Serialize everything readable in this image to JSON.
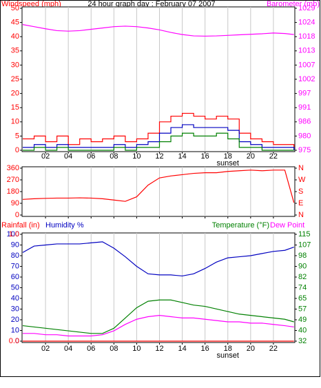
{
  "chart_data": [
    {
      "type": "line",
      "title": "24 hour graph day : February 07 2007",
      "y_label": "Windspeed (mph)",
      "x": [
        0,
        1,
        2,
        3,
        4,
        5,
        6,
        7,
        8,
        9,
        10,
        11,
        12,
        13,
        14,
        15,
        16,
        17,
        18,
        19,
        20,
        21,
        22,
        23,
        23.8
      ],
      "xlim": [
        0,
        24
      ],
      "xticks": [
        {
          "value": 2,
          "label": "02"
        },
        {
          "value": 4,
          "label": "04"
        },
        {
          "value": 6,
          "label": "06"
        },
        {
          "value": 8,
          "label": "08"
        },
        10,
        12,
        14,
        16,
        18,
        20,
        22
      ],
      "grid": true,
      "annotations": [
        {
          "text": "sunset",
          "x": 18
        }
      ],
      "ylim": [
        0,
        50
      ],
      "yticks": [
        0,
        5,
        10,
        15,
        20,
        25,
        30,
        35,
        40,
        45,
        50
      ],
      "ycolor": "#ff0000",
      "y2lim": [
        975,
        1029
      ],
      "y2ticks": [
        {
          "value": 975,
          "label": "975"
        },
        {
          "value": 980.4,
          "label": "980"
        },
        {
          "value": 985.8,
          "label": "986"
        },
        {
          "value": 991.2,
          "label": "991"
        },
        {
          "value": 996.6,
          "label": "997"
        },
        {
          "value": 1002,
          "label": "1002"
        },
        {
          "value": 1007.4,
          "label": "1007"
        },
        {
          "value": 1012.8,
          "label": "1013"
        },
        {
          "value": 1018.2,
          "label": "1018"
        },
        {
          "value": 1023.6,
          "label": "1024"
        },
        {
          "value": 1029,
          "label": "1029"
        }
      ],
      "y2color": "#ff00ff",
      "series": [
        {
          "color": "#ff0000",
          "step": true,
          "values": [
            4,
            5,
            3,
            5,
            2,
            4,
            3,
            4,
            5,
            3,
            4,
            6,
            10,
            12,
            13,
            12,
            11,
            12,
            11,
            6,
            4,
            3,
            2,
            2,
            1
          ]
        },
        {
          "color": "#0000c0",
          "step": true,
          "values": [
            1,
            2,
            1,
            2,
            1,
            1,
            1,
            1,
            2,
            1,
            2,
            3,
            6,
            8,
            9,
            8,
            8,
            8,
            7,
            3,
            2,
            1,
            1,
            1,
            0
          ]
        },
        {
          "color": "#008000",
          "step": true,
          "values": [
            0,
            1,
            0,
            1,
            0,
            0,
            0,
            0,
            1,
            0,
            1,
            1,
            3,
            5,
            6,
            5,
            5,
            6,
            4,
            1,
            1,
            0,
            0,
            0,
            0
          ]
        },
        {
          "name": "Barometer (mb)",
          "color": "#ff00ff",
          "axis": "y2",
          "values": [
            1022.8,
            1022.0,
            1021.2,
            1020.5,
            1020.3,
            1020.5,
            1021.0,
            1021.5,
            1022.0,
            1022.2,
            1022.0,
            1021.5,
            1020.8,
            1019.8,
            1019.0,
            1018.5,
            1018.4,
            1018.5,
            1018.7,
            1018.9,
            1019.1,
            1019.3,
            1019.6,
            1019.4,
            1019.0
          ]
        }
      ]
    },
    {
      "type": "line",
      "x": [
        0,
        1,
        2,
        3,
        4,
        5,
        6,
        7,
        8,
        9,
        10,
        11,
        12,
        13,
        14,
        15,
        16,
        17,
        18,
        19,
        20,
        21,
        22,
        23,
        23.8
      ],
      "xlim": [
        0,
        24
      ],
      "xticks": [
        2,
        4,
        6,
        8,
        10,
        12,
        14,
        16,
        18,
        20,
        22
      ],
      "grid": true,
      "ylim": [
        0,
        360
      ],
      "yticks": [
        0,
        90,
        180,
        270,
        360
      ],
      "ycolor": "#ff0000",
      "y2lim": [
        0,
        360
      ],
      "y2ticks": [
        {
          "value": 0,
          "label": "N"
        },
        {
          "value": 90,
          "label": "E"
        },
        {
          "value": 180,
          "label": "S"
        },
        {
          "value": 270,
          "label": "W"
        },
        {
          "value": 360,
          "label": "N"
        }
      ],
      "y2color": "#ff0000",
      "series": [
        {
          "color": "#ff0000",
          "values": [
            120,
            125,
            128,
            130,
            130,
            132,
            130,
            125,
            115,
            105,
            140,
            230,
            285,
            300,
            310,
            320,
            325,
            325,
            335,
            340,
            345,
            340,
            345,
            345,
            95
          ]
        }
      ]
    },
    {
      "type": "line",
      "x": [
        0,
        1,
        2,
        3,
        4,
        5,
        6,
        7,
        8,
        9,
        10,
        11,
        12,
        13,
        14,
        15,
        16,
        17,
        18,
        19,
        20,
        21,
        22,
        23,
        23.8
      ],
      "xlim": [
        0,
        24
      ],
      "xticks": [
        {
          "value": 2,
          "label": "02"
        },
        {
          "value": 4,
          "label": "04"
        },
        {
          "value": 6,
          "label": "06"
        },
        {
          "value": 8,
          "label": "08"
        },
        10,
        12,
        14,
        16,
        18,
        20,
        22
      ],
      "grid": true,
      "annotations": [
        {
          "text": "sunset",
          "x": 18
        }
      ],
      "ylim": [
        0,
        100
      ],
      "yticks": [
        0,
        10,
        20,
        30,
        40,
        50,
        60,
        70,
        80,
        90,
        100
      ],
      "ycolor": "#0000c0",
      "y3lim": [
        0,
        1
      ],
      "y3ticks": [
        {
          "value": 0,
          "label": "0.0"
        },
        {
          "value": 1,
          "label": "1.0"
        }
      ],
      "y3color": "#ff0000",
      "y2lim": [
        32,
        115
      ],
      "y2ticks": [
        {
          "value": 32,
          "label": "32"
        },
        {
          "value": 40.3,
          "label": "40"
        },
        {
          "value": 48.6,
          "label": "49"
        },
        {
          "value": 56.9,
          "label": "57"
        },
        {
          "value": 65.2,
          "label": "65"
        },
        {
          "value": 73.5,
          "label": "74"
        },
        {
          "value": 81.8,
          "label": "82"
        },
        {
          "value": 90.1,
          "label": "90"
        },
        {
          "value": 98.4,
          "label": "98"
        },
        {
          "value": 106.7,
          "label": "107"
        },
        {
          "value": 115,
          "label": "115"
        }
      ],
      "y2color": "#008000",
      "series": [
        {
          "name": "Rainfall (in)",
          "color": "#ff0000",
          "axis": "y3",
          "values": [
            0,
            0,
            0,
            0,
            0,
            0,
            0,
            0,
            0,
            0,
            0,
            0,
            0,
            0,
            0,
            0,
            0,
            0,
            0,
            0,
            0,
            0,
            0,
            0,
            0
          ]
        },
        {
          "name": "Humidity %",
          "color": "#0000c0",
          "values": [
            83,
            89,
            90,
            91,
            91,
            91,
            92,
            93,
            87,
            79,
            70,
            63,
            62,
            62,
            61,
            63,
            68,
            74,
            78,
            79,
            80,
            82,
            84,
            85,
            88
          ]
        },
        {
          "name": "Temperature (°F)",
          "color": "#008000",
          "axis": "y2",
          "values": [
            44,
            43,
            42,
            41,
            40,
            39,
            38,
            38,
            42,
            50,
            58,
            63,
            64,
            64,
            62,
            60,
            59,
            57,
            55,
            53,
            52,
            51,
            50,
            49,
            47
          ]
        },
        {
          "name": "Dew Point",
          "color": "#ff00ff",
          "axis": "y2",
          "values": [
            38,
            38,
            37,
            37,
            36,
            36,
            36,
            37,
            40,
            45,
            49,
            51,
            52,
            51,
            50,
            50,
            49,
            48,
            47,
            47,
            46,
            46,
            45,
            44,
            43
          ]
        }
      ]
    }
  ]
}
